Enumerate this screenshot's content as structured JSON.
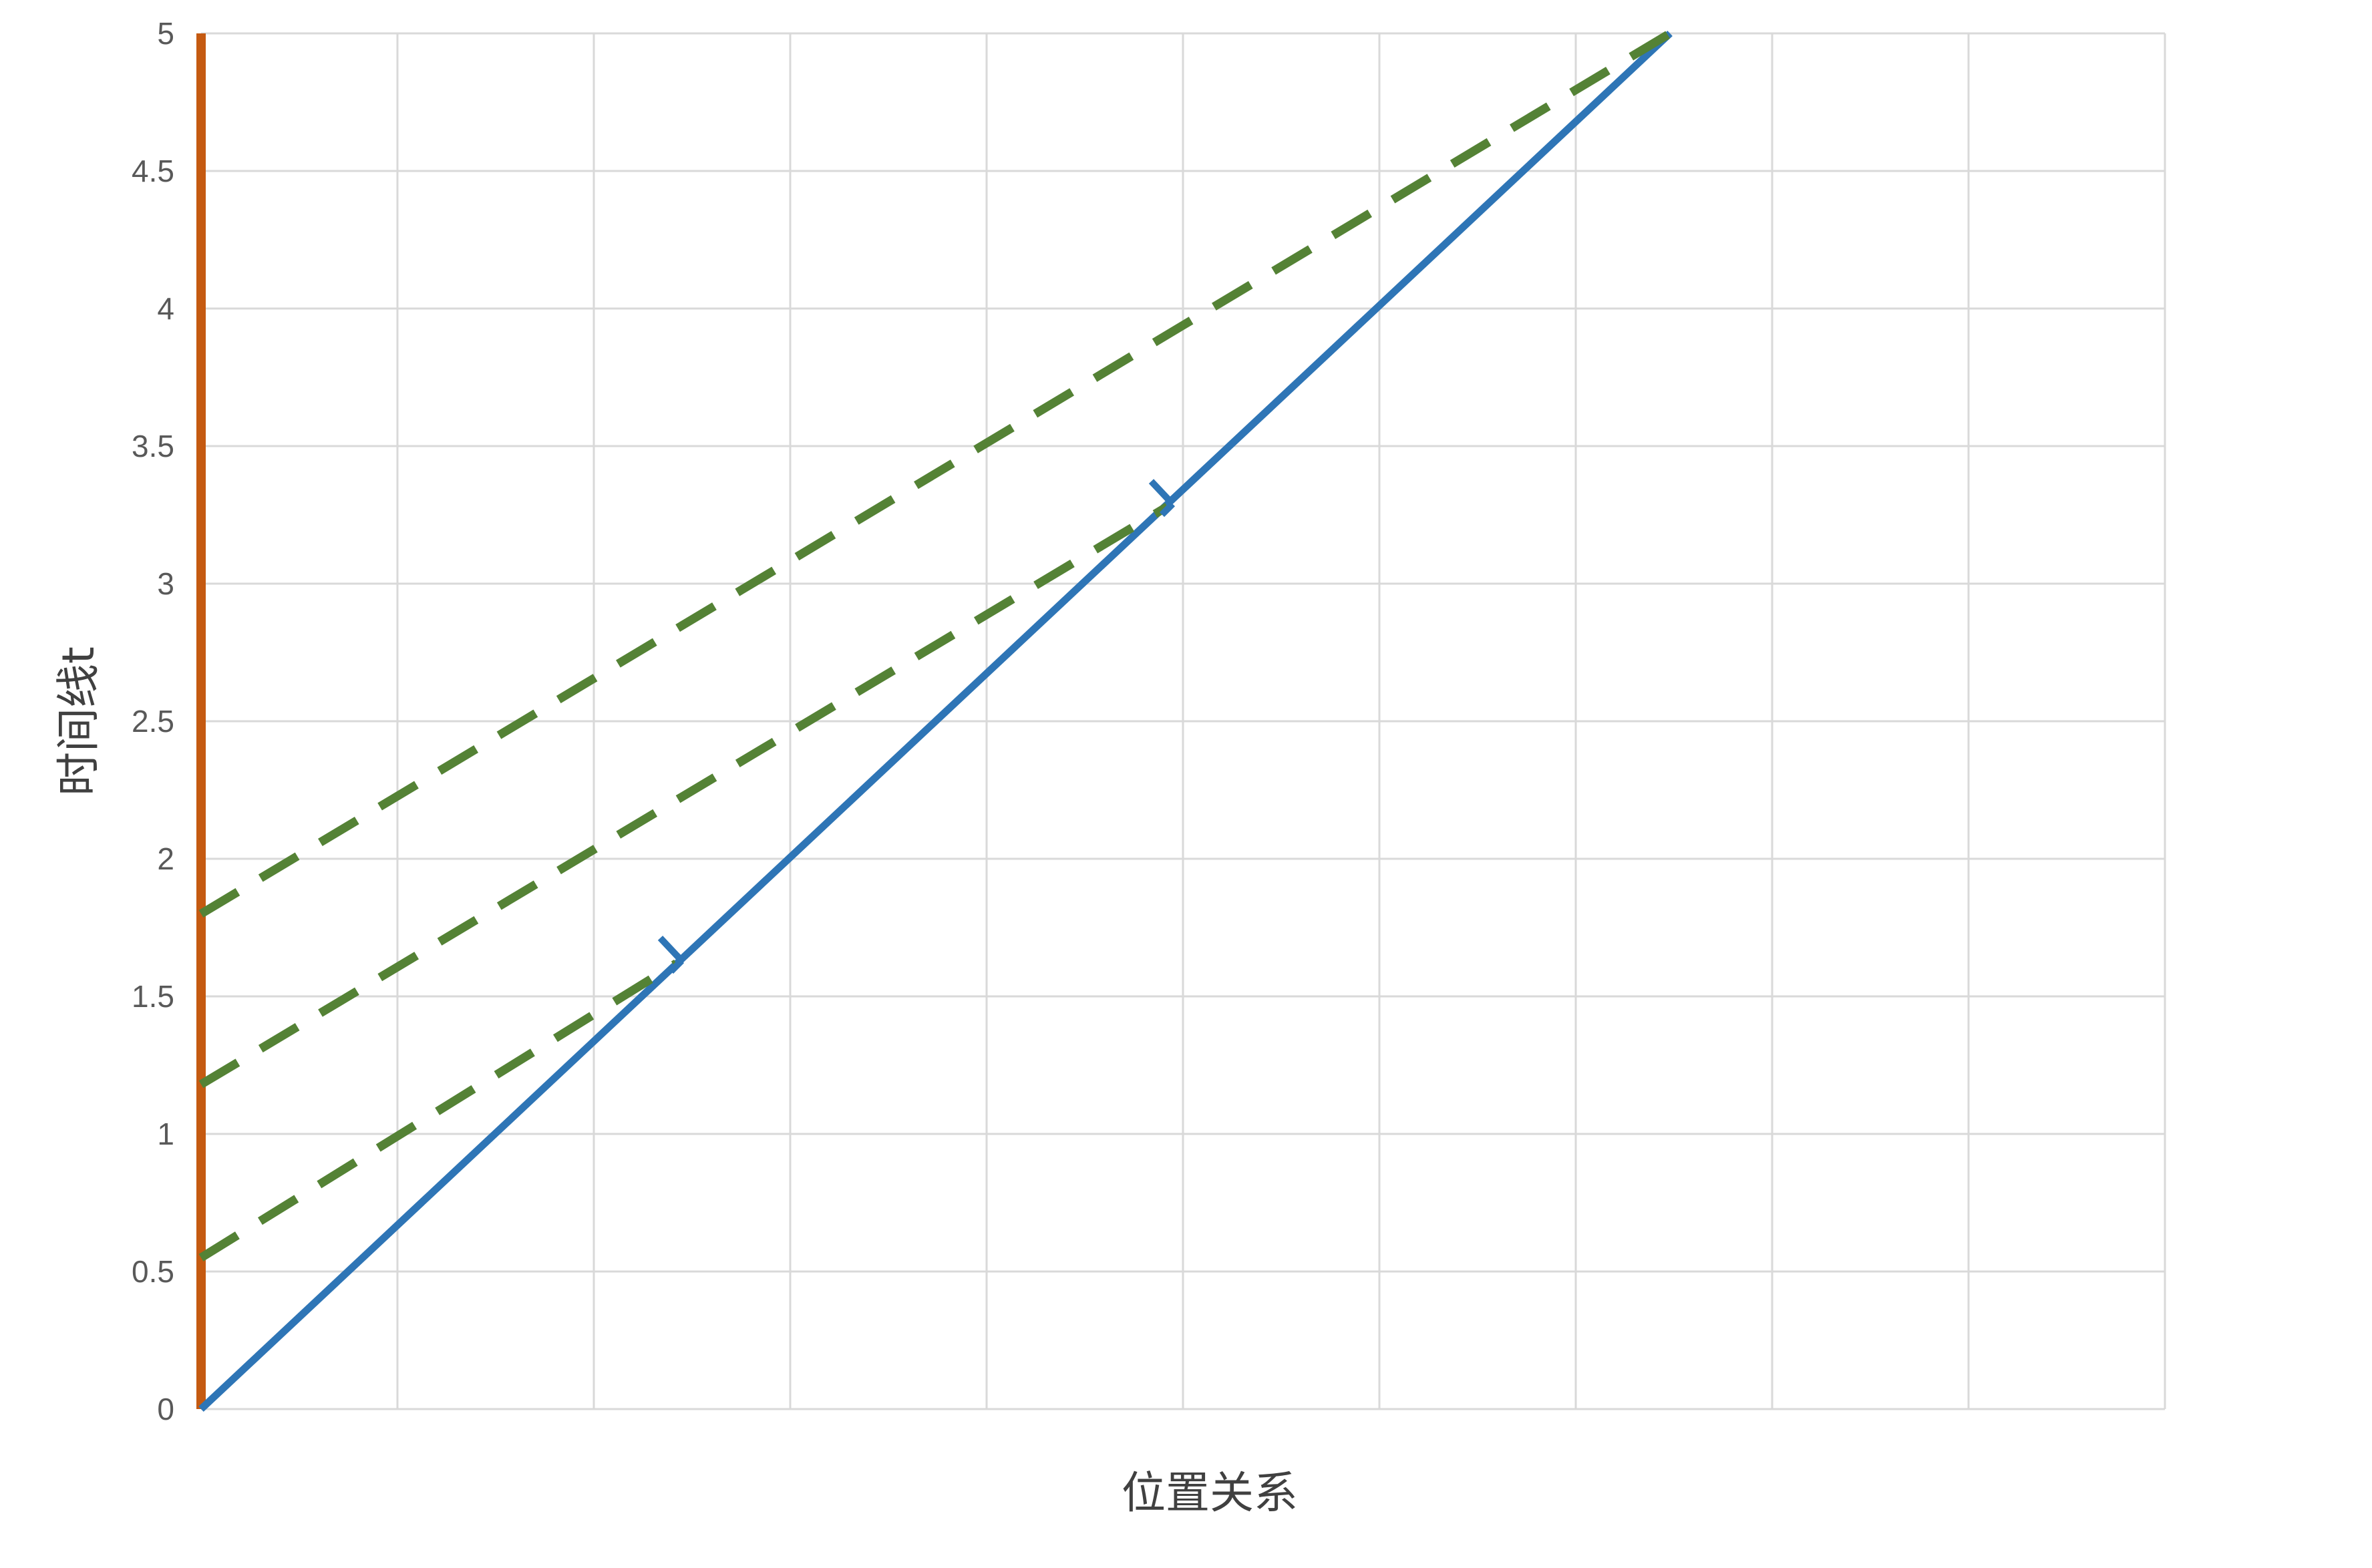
{
  "chart_data": {
    "type": "line",
    "xlabel": "位置关系",
    "ylabel": "时间线t",
    "xlim": [
      0,
      10
    ],
    "ylim": [
      0,
      5
    ],
    "y_ticks": [
      "0",
      "0.5",
      "1",
      "1.5",
      "2",
      "2.5",
      "3",
      "3.5",
      "4",
      "4.5",
      "5"
    ],
    "x_gridlines": [
      0,
      1,
      2,
      3,
      4,
      5,
      6,
      7,
      8,
      9,
      10
    ],
    "grid": true,
    "legend": "none",
    "series": [
      {
        "style": "solid",
        "color": "#c55a11",
        "points": [
          [
            0,
            0
          ],
          [
            0,
            5
          ]
        ]
      },
      {
        "style": "solid",
        "color": "#2e75b6",
        "points": [
          [
            0,
            0
          ],
          [
            7.48,
            5
          ]
        ]
      },
      {
        "style": "dashed",
        "color": "#548235",
        "points": [
          [
            0,
            0.55
          ],
          [
            2.42,
            1.62
          ]
        ]
      },
      {
        "style": "dashed",
        "color": "#548235",
        "points": [
          [
            0,
            1.18
          ],
          [
            4.92,
            3.28
          ]
        ]
      },
      {
        "style": "dashed",
        "color": "#548235",
        "points": [
          [
            0,
            1.8
          ],
          [
            7.48,
            5
          ]
        ]
      }
    ],
    "markers": [
      {
        "color": "#2e75b6",
        "point": [
          2.42,
          1.62
        ]
      },
      {
        "color": "#2e75b6",
        "point": [
          4.92,
          3.28
        ]
      }
    ]
  }
}
